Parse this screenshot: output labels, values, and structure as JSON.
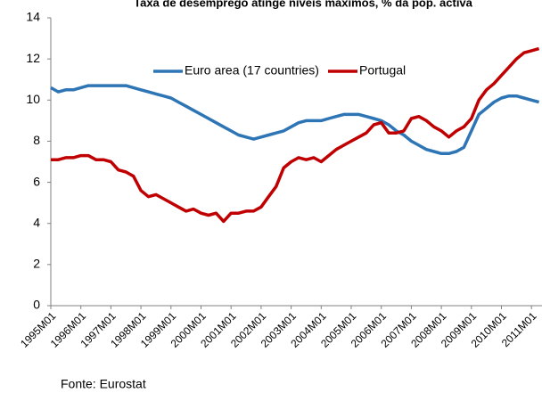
{
  "chart_data": {
    "type": "line",
    "title": "Taxa de desemprego atinge níveis máximos, % da pop. activa",
    "source": "Fonte:  Eurostat",
    "categories": [
      "1995M01",
      null,
      null,
      null,
      "1996M01",
      null,
      null,
      null,
      "1997M01",
      null,
      null,
      null,
      "1998M01",
      null,
      null,
      null,
      "1999M01",
      null,
      null,
      null,
      "2000M01",
      null,
      null,
      null,
      "2001M01",
      null,
      null,
      null,
      "2002M01",
      null,
      null,
      null,
      "2003M01",
      null,
      null,
      null,
      "2004M01",
      null,
      null,
      null,
      "2005M01",
      null,
      null,
      null,
      "2006M01",
      null,
      null,
      null,
      "2007M01",
      null,
      null,
      null,
      "2008M01",
      null,
      null,
      null,
      "2009M01",
      null,
      null,
      null,
      "2010M01",
      null,
      null,
      null,
      "2011M01",
      null
    ],
    "series": [
      {
        "name": "Euro area (17 countries)",
        "color": "#2e75b6",
        "values": [
          10.6,
          10.4,
          10.5,
          10.5,
          10.6,
          10.7,
          10.7,
          10.7,
          10.7,
          10.7,
          10.7,
          10.6,
          10.5,
          10.4,
          10.3,
          10.2,
          10.1,
          9.9,
          9.7,
          9.5,
          9.3,
          9.1,
          8.9,
          8.7,
          8.5,
          8.3,
          8.2,
          8.1,
          8.2,
          8.3,
          8.4,
          8.5,
          8.7,
          8.9,
          9.0,
          9.0,
          9.0,
          9.1,
          9.2,
          9.3,
          9.3,
          9.3,
          9.2,
          9.1,
          9.0,
          8.8,
          8.5,
          8.3,
          8.0,
          7.8,
          7.6,
          7.5,
          7.4,
          7.4,
          7.5,
          7.7,
          8.5,
          9.3,
          9.6,
          9.9,
          10.1,
          10.2,
          10.2,
          10.1,
          10.0,
          9.9
        ]
      },
      {
        "name": "Portugal",
        "color": "#c00000",
        "values": [
          7.1,
          7.1,
          7.2,
          7.2,
          7.3,
          7.3,
          7.1,
          7.1,
          7.0,
          6.6,
          6.5,
          6.3,
          5.6,
          5.3,
          5.4,
          5.2,
          5.0,
          4.8,
          4.6,
          4.7,
          4.5,
          4.4,
          4.5,
          4.1,
          4.5,
          4.5,
          4.6,
          4.6,
          4.8,
          5.3,
          5.8,
          6.7,
          7.0,
          7.2,
          7.1,
          7.2,
          7.0,
          7.3,
          7.6,
          7.8,
          8.0,
          8.2,
          8.4,
          8.8,
          8.9,
          8.4,
          8.4,
          8.5,
          9.1,
          9.2,
          9.0,
          8.7,
          8.5,
          8.2,
          8.5,
          8.7,
          9.1,
          10.0,
          10.5,
          10.8,
          11.2,
          11.6,
          12.0,
          12.3,
          12.4,
          12.5
        ]
      }
    ],
    "ylim": [
      0,
      14
    ],
    "yticks": [
      0,
      2,
      4,
      6,
      8,
      10,
      12,
      14
    ],
    "grid": false
  }
}
